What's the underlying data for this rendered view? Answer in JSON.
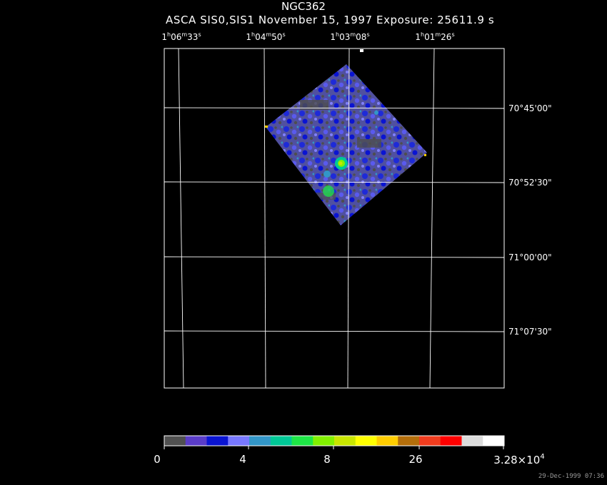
{
  "header": {
    "object": "NGC362",
    "subtitle": "ASCA SIS0,SIS1 November 15, 1997 Exposure: 25611.9 s"
  },
  "ra_ticks": [
    {
      "h": "1",
      "m": "06",
      "s": "33"
    },
    {
      "h": "1",
      "m": "04",
      "s": "50"
    },
    {
      "h": "1",
      "m": "03",
      "s": "08"
    },
    {
      "h": "1",
      "m": "01",
      "s": "26"
    }
  ],
  "dec_ticks": [
    "70°45'00\"",
    "70°52'30\"",
    "71°00'00\"",
    "71°07'30\""
  ],
  "colorbar": {
    "colors": [
      "#505050",
      "#5a3cc8",
      "#0a14d2",
      "#7878ff",
      "#3296c8",
      "#00c896",
      "#1ee646",
      "#82f000",
      "#c8e600",
      "#ffff00",
      "#ffcd00",
      "#b46e0a",
      "#f03c1e",
      "#ff0000",
      "#dcdcdc",
      "#ffffff"
    ],
    "labels": [
      "0",
      "4",
      "8",
      "26"
    ],
    "max_mantissa": "3.28×10",
    "max_exponent": "4"
  },
  "timestamp": "29-Dec-1999 07:36"
}
